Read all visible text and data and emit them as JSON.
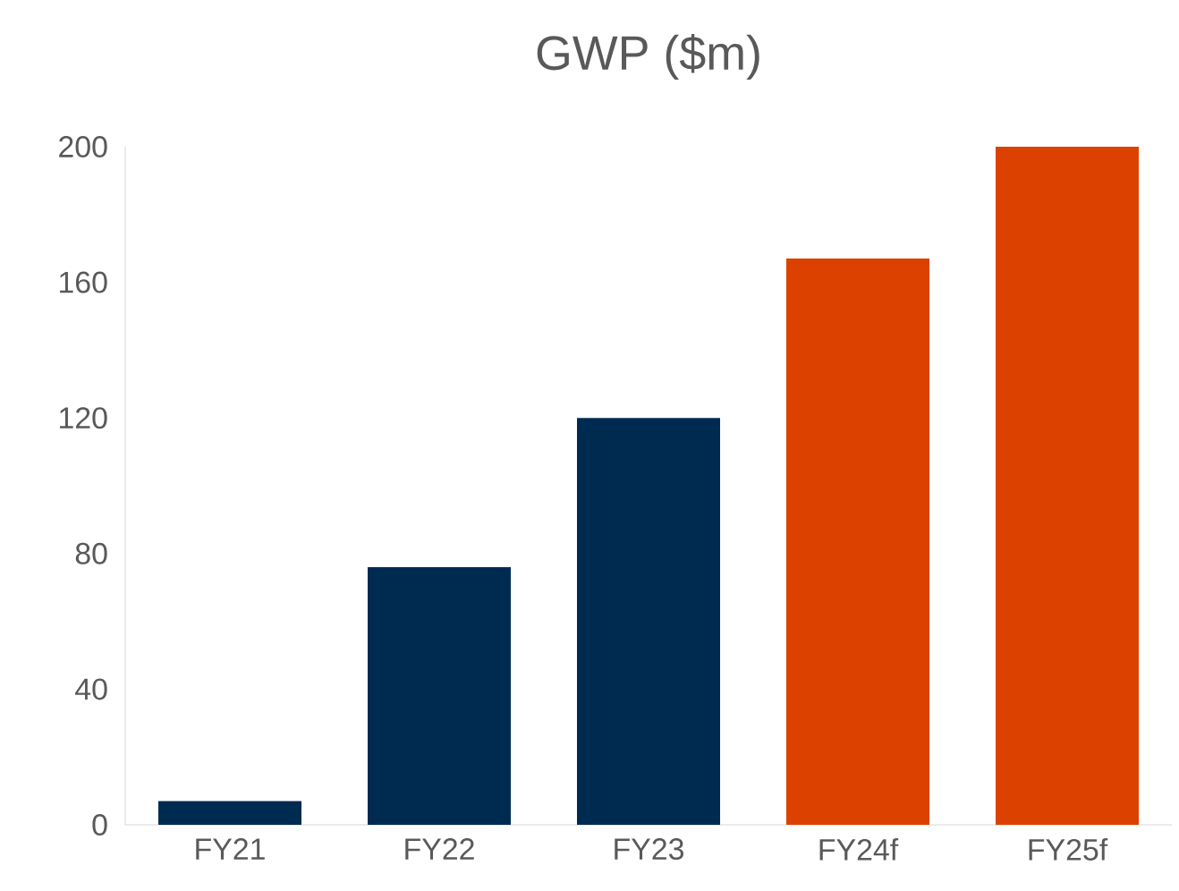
{
  "chart_data": {
    "type": "bar",
    "title": "GWP ($m)",
    "categories": [
      "FY21",
      "FY22",
      "FY23",
      "FY24f",
      "FY25f"
    ],
    "values": [
      7,
      76,
      120,
      167,
      200
    ],
    "colors": [
      "#002b51",
      "#002b51",
      "#002b51",
      "#dc4100",
      "#dc4100"
    ],
    "ylim": [
      0,
      200
    ],
    "yticks": [
      0,
      40,
      80,
      120,
      160,
      200
    ]
  }
}
